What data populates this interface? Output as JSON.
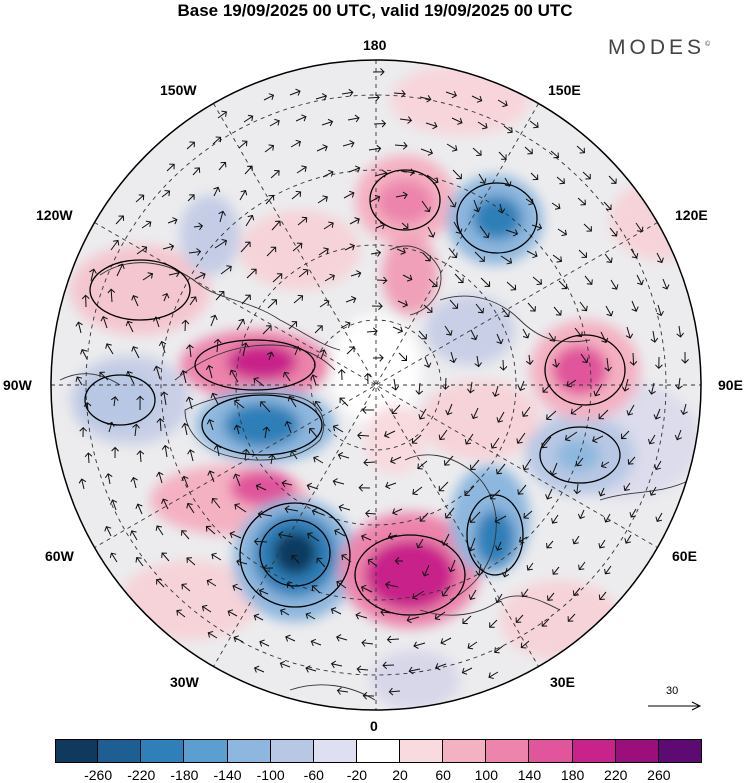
{
  "title": "Base 19/09/2025 00 UTC, valid 19/09/2025 00 UTC",
  "brand": "MODES",
  "brand_mark": "©",
  "longitude_labels": {
    "top": "180",
    "bottom": "0",
    "left": "90W",
    "right": "90E",
    "upper_left_1": "150W",
    "upper_left_2": "120W",
    "upper_right_1": "150E",
    "upper_right_2": "120E",
    "lower_left_1": "60W",
    "lower_left_2": "30W",
    "lower_right_1": "60E",
    "lower_right_2": "30E"
  },
  "reference_vector": "30",
  "colorbar": {
    "labels": [
      "-260",
      "-220",
      "-180",
      "-140",
      "-100",
      "-60",
      "-20",
      "20",
      "60",
      "100",
      "140",
      "180",
      "220",
      "260"
    ],
    "colors": [
      "#0f3a5e",
      "#1d5f93",
      "#2f7fb8",
      "#5b9ed0",
      "#8db7de",
      "#b8c8e4",
      "#dedff0",
      "#ffffff",
      "#f8dadf",
      "#f4b1c2",
      "#ec84ac",
      "#e0559b",
      "#c8238a",
      "#9a0f7c",
      "#5e0a73"
    ]
  },
  "anomaly_centers": [
    {
      "type": "positive",
      "value": "260",
      "colors": "#c8238a"
    },
    {
      "type": "negative",
      "value": "-260",
      "colors": "#0f3a5e"
    }
  ]
}
